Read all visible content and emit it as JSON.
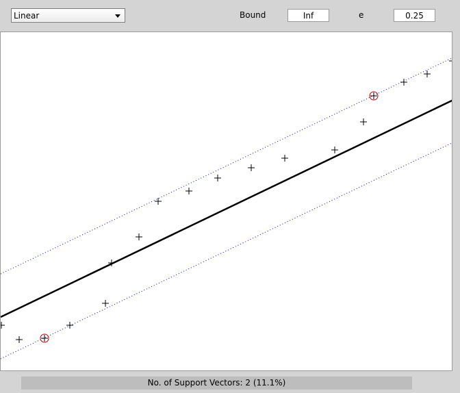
{
  "controls": {
    "kernel_select": {
      "value": "Linear"
    },
    "bound_label": "Bound",
    "bound_value": "Inf",
    "e_label": "e",
    "e_value": "0.25"
  },
  "status": {
    "text": "No. of Support Vectors: 2 (11.1%)"
  },
  "colors": {
    "regression_line": "#000000",
    "margin_lines": "#0000cc",
    "data_points": "#000000",
    "support_vector_marker": "#cc0000"
  },
  "icons": {
    "dropdown": "chevron-down-icon"
  }
}
